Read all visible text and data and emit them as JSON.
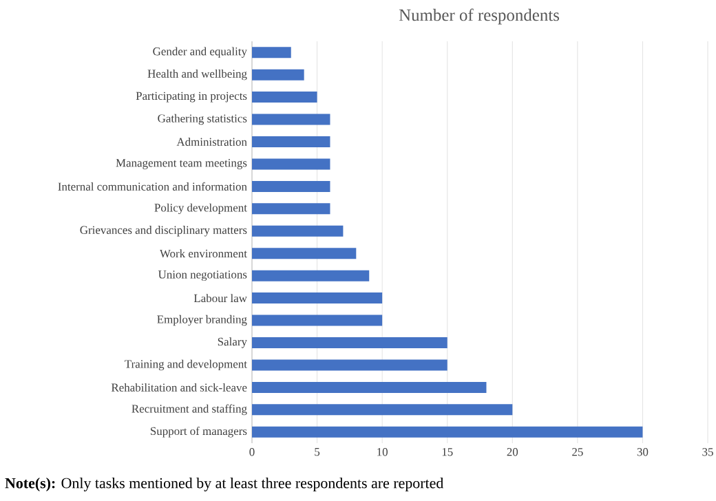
{
  "chart_data": {
    "type": "bar",
    "orientation": "horizontal",
    "title": "Number of respondents",
    "categories": [
      "Gender and equality",
      "Health and wellbeing",
      "Participating in projects",
      "Gathering statistics",
      "Administration",
      "Management team meetings",
      "Internal communication and information",
      "Policy development",
      "Grievances and disciplinary matters",
      "Work environment",
      "Union negotiations",
      "Labour law",
      "Employer branding",
      "Salary",
      "Training and development",
      "Rehabilitation and sick-leave",
      "Recruitment and staffing",
      "Support of managers"
    ],
    "values": [
      3,
      4,
      5,
      6,
      6,
      6,
      6,
      6,
      7,
      8,
      9,
      10,
      10,
      15,
      15,
      18,
      20,
      30
    ],
    "color": "#4472c4",
    "xlim": [
      0,
      35
    ],
    "xticks": [
      0,
      5,
      10,
      15,
      20,
      25,
      30,
      35
    ],
    "grid": "x",
    "annotations": [
      "**Note(s):** Only tasks mentioned by at least three respondents are reported"
    ]
  }
}
